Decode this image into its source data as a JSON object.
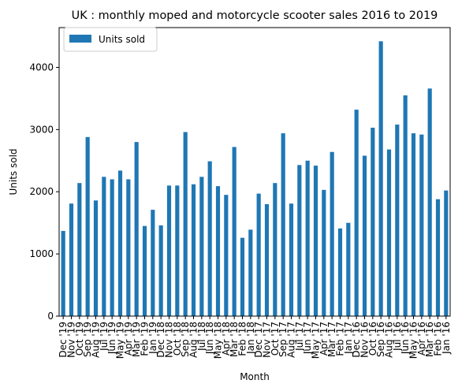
{
  "chart_data": {
    "type": "bar",
    "title": "UK : monthly moped and motorcycle scooter sales 2016 to 2019",
    "xlabel": "Month",
    "ylabel": "Units sold",
    "ylim": [
      0,
      4640
    ],
    "yticks": [
      0,
      1000,
      2000,
      3000,
      4000
    ],
    "grid": false,
    "legend_position": "top-left",
    "categories": [
      "Dec '19",
      "Nov '19",
      "Oct '19",
      "Sep '19",
      "Aug '19",
      "Jul '19",
      "Jun '19",
      "May '19",
      "Apr '19",
      "Mar '19",
      "Feb '19",
      "Jan '19",
      "Dec '18",
      "Nov '18",
      "Oct '18",
      "Sep '18",
      "Aug '18",
      "Jul '18",
      "Jun '18",
      "May '18",
      "Apr '18",
      "Mar '18",
      "Feb '18",
      "Jan '18",
      "Dec '17",
      "Nov '17",
      "Oct '17",
      "Sep '17",
      "Aug '17",
      "Jul '17",
      "Jun '17",
      "May '17",
      "Apr '17",
      "Mar '17",
      "Feb '17",
      "Jan '17",
      "Dec '16",
      "Nov '16",
      "Oct '16",
      "Sep '16",
      "Aug '16",
      "Jul '16",
      "Jun '16",
      "May '16",
      "Apr '16",
      "Mar '16",
      "Feb '16",
      "Jan '16"
    ],
    "series": [
      {
        "name": "Units sold",
        "color": "#1f77b4",
        "values": [
          1370,
          1810,
          2140,
          2880,
          1860,
          2240,
          2200,
          2340,
          2200,
          2800,
          1450,
          1710,
          1460,
          2100,
          2100,
          2960,
          2120,
          2240,
          2490,
          2090,
          1950,
          2720,
          1260,
          1390,
          1970,
          1800,
          2140,
          2940,
          1810,
          2430,
          2500,
          2420,
          2030,
          2640,
          1410,
          1500,
          3320,
          2580,
          3030,
          4420,
          2680,
          3080,
          3550,
          2940,
          2920,
          3660,
          1880,
          2020
        ]
      }
    ]
  }
}
